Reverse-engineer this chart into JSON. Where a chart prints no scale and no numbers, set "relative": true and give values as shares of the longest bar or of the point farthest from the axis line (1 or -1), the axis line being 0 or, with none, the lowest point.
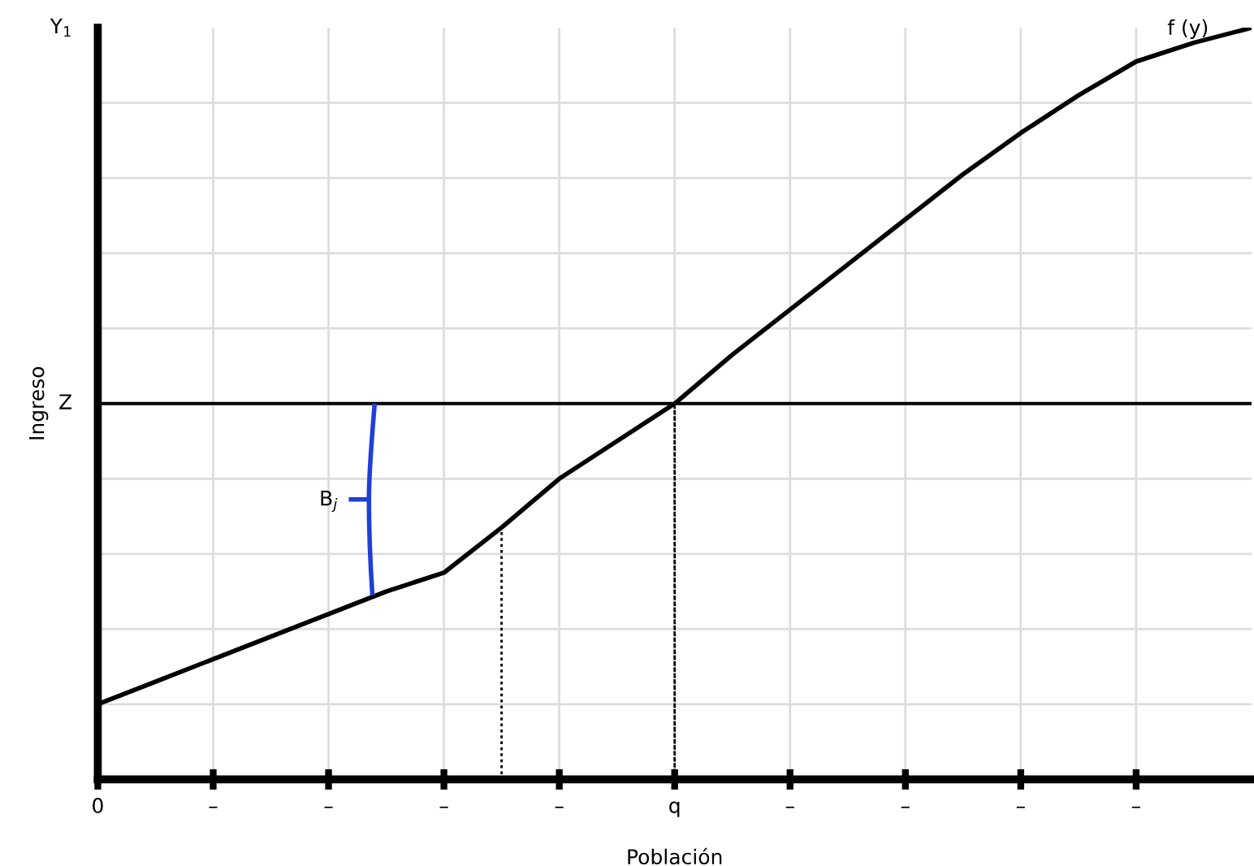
{
  "chart_data": {
    "type": "line",
    "relative": true,
    "xlabel": "Población",
    "ylabel": "Ingreso",
    "categories": [
      "0",
      null,
      "–",
      null,
      "–",
      null,
      "–",
      null,
      "–",
      null,
      "q",
      null,
      "–",
      null,
      "–",
      null,
      "–",
      null,
      "–",
      null,
      null
    ],
    "grid": true,
    "marker": "none",
    "series": [
      {
        "color": "#000000",
        "line_style": "solid",
        "values": [
          0.1,
          0.13,
          0.16,
          0.19,
          0.22,
          0.25,
          0.275,
          0.335,
          0.4,
          0.45,
          0.5,
          0.565,
          0.625,
          0.685,
          0.745,
          0.805,
          0.86,
          0.91,
          0.955,
          0.98,
          1.0
        ]
      },
      {
        "type": "bar",
        "color": "#000000",
        "line_style": "dotted",
        "values": [
          null,
          null,
          null,
          null,
          null,
          null,
          null,
          0.335,
          null,
          null,
          null,
          null,
          null,
          null,
          null,
          null,
          null,
          null,
          null,
          null,
          null
        ]
      },
      {
        "type": "bar",
        "color": "#000000",
        "line_style": "dotted",
        "values": [
          null,
          null,
          null,
          null,
          null,
          null,
          null,
          null,
          null,
          null,
          0.5,
          null,
          null,
          null,
          null,
          null,
          null,
          null,
          null,
          null,
          null
        ]
      }
    ],
    "ref_lines": [
      {
        "axis": "y",
        "value": 0.5,
        "label": "Z",
        "color": "#000000",
        "line_style": "solid"
      }
    ],
    "annotations": [
      "Y$_{1}$",
      "B$_{j}$",
      "f (y)"
    ]
  }
}
